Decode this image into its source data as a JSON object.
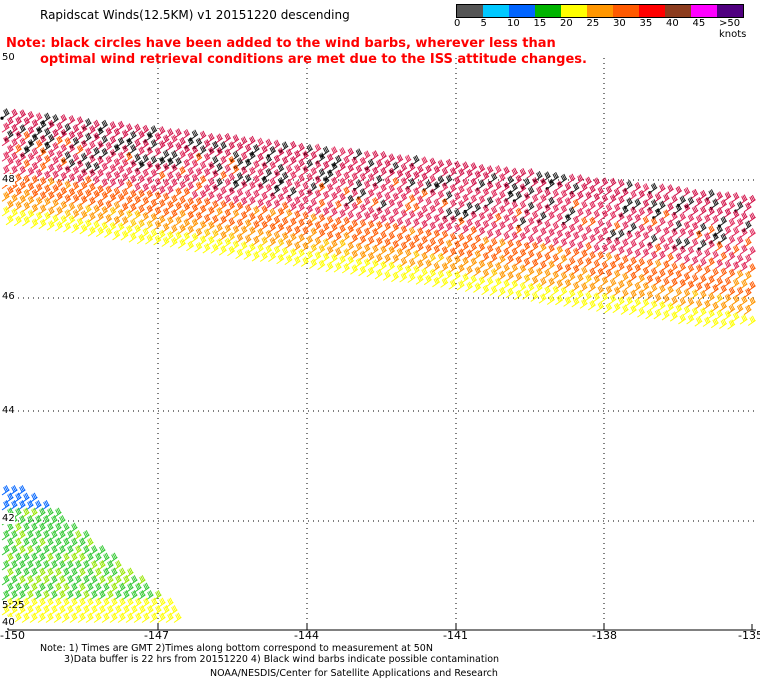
{
  "title": "Rapidscat Winds(12.5KM) v1 20151220 descending",
  "note_line1": "Note: black circles have been added to the wind barbs, wherever less than",
  "note_line2": "optimal wind retrieval conditions are met due to the ISS attitude changes.",
  "colorbar": {
    "labels": [
      "0",
      "5",
      "10",
      "15",
      "20",
      "25",
      "30",
      "35",
      "40",
      "45",
      ">50 knots"
    ],
    "colors": [
      "#555555",
      "#00c8ff",
      "#0064ff",
      "#00b400",
      "#ffff00",
      "#ff9600",
      "#ff5a00",
      "#ff0000",
      "#8c3c1e",
      "#ff00ff",
      "#500080"
    ]
  },
  "map": {
    "lat_labels": [
      "50",
      "48",
      "46",
      "44",
      "42",
      "40"
    ],
    "lon_labels": [
      "-150",
      "-147",
      "-144",
      "-141",
      "-138",
      "-135"
    ]
  },
  "time_label": "5:25",
  "footer": {
    "line1": "Note: 1) Times are GMT 2)Times along bottom correspond to measurement at 50N",
    "line2": "3)Data buffer is 22 hrs from 20151220 4) Black wind barbs indicate possible contamination",
    "line3": "NOAA/NESDIS/Center for Satellite Applications and Research"
  }
}
